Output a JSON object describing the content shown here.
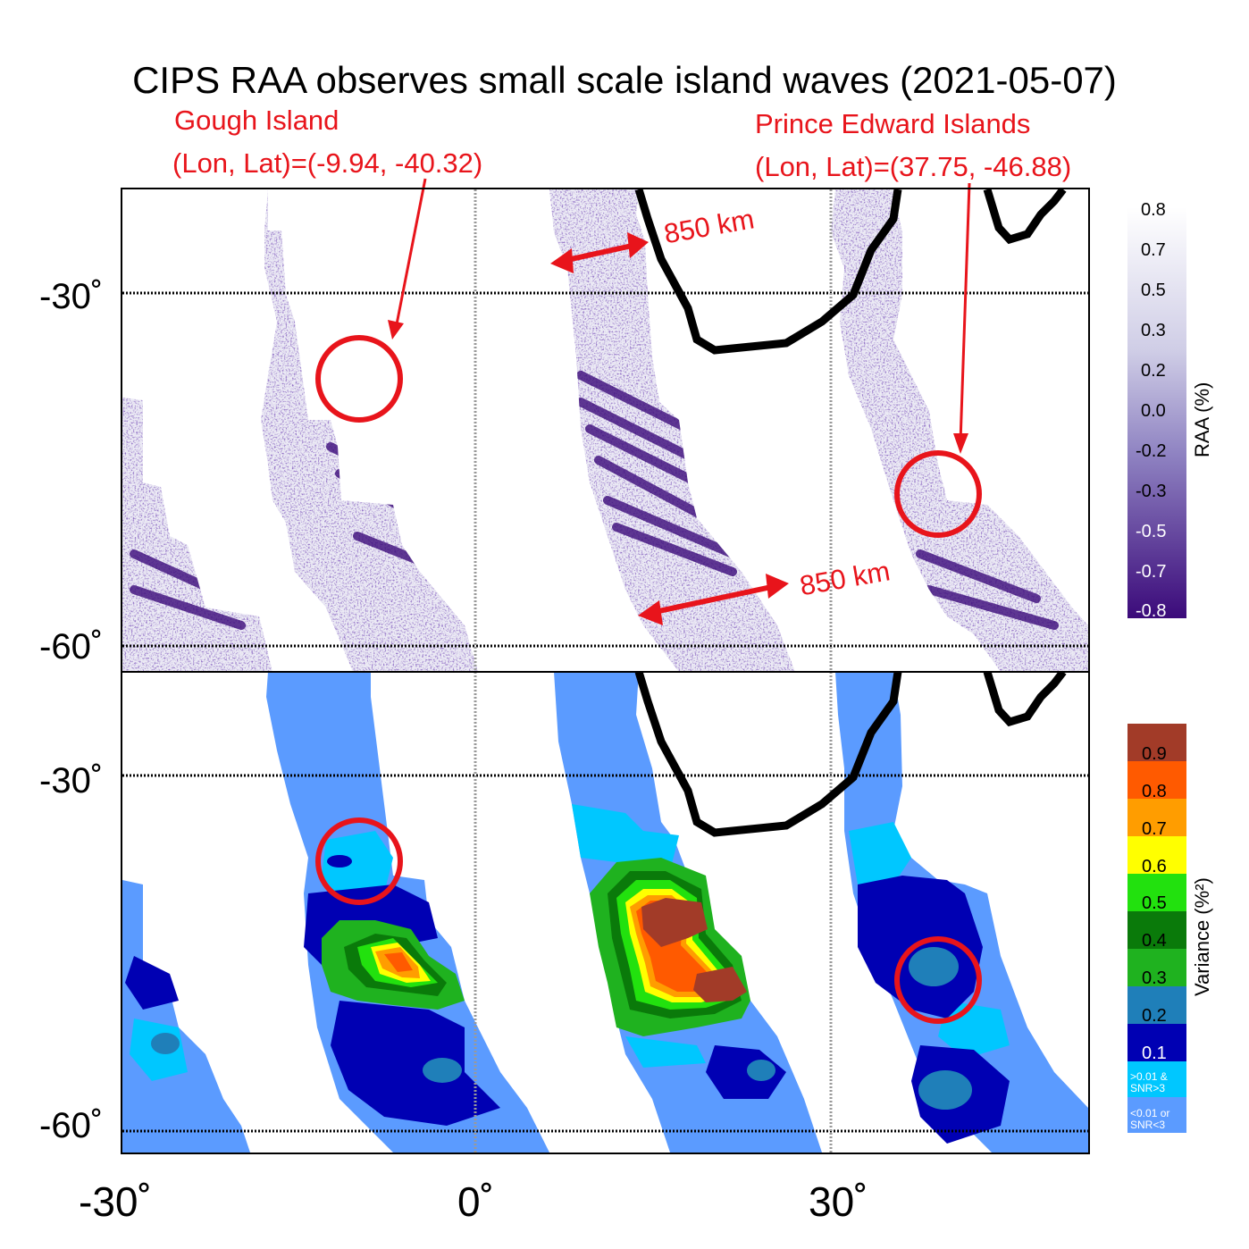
{
  "title": "CIPS RAA observes small scale island waves (2021-05-07)",
  "annotations": {
    "gough_name": "Gough Island",
    "gough_coords": "(Lon, Lat)=(-9.94, -40.32)",
    "prince_name": "Prince Edward Islands",
    "prince_coords": "(Lon, Lat)=(37.75, -46.88)",
    "distance_top": "850 km",
    "distance_bottom": "850 km"
  },
  "axes": {
    "lat_top_1": "-30˚",
    "lat_top_2": "-60˚",
    "lat_bottom_1": "-30˚",
    "lat_bottom_2": "-60˚",
    "lon_1": "-30˚",
    "lon_2": "0˚",
    "lon_3": "30˚"
  },
  "raa_colorbar": {
    "title": "RAA (%)",
    "ticks": [
      "0.8",
      "0.7",
      "0.5",
      "0.3",
      "0.2",
      "0.0",
      "-0.2",
      "-0.3",
      "-0.5",
      "-0.7",
      "-0.8"
    ]
  },
  "variance_colorbar": {
    "title": "Variance (%²)",
    "ticks": [
      "0.9",
      "0.8",
      "0.7",
      "0.6",
      "0.5",
      "0.4",
      "0.3",
      "0.2",
      "0.1"
    ],
    "low_1": ">0.01 &",
    "low_1b": "SNR>3",
    "low_2": "<0.01 or",
    "low_2b": "SNR<3",
    "colors": [
      "#a23b28",
      "#ff5a00",
      "#ff9d00",
      "#ffff00",
      "#22e10e",
      "#0a7a0a",
      "#1fb21f",
      "#1f7fb9",
      "#0000b3",
      "#00c7ff",
      "#5b9bff"
    ]
  }
}
